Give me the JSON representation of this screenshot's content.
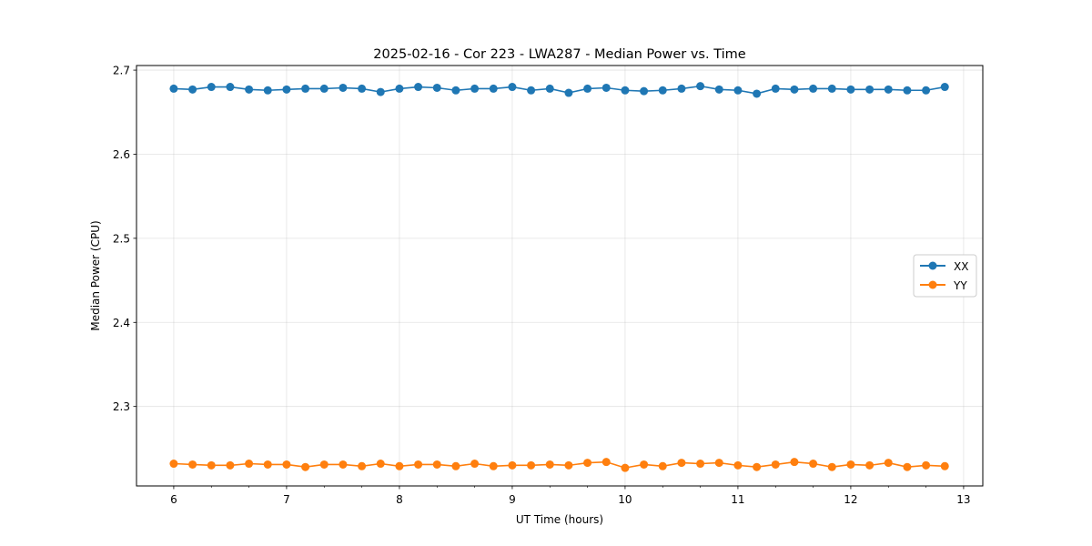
{
  "chart_data": {
    "type": "line",
    "title": "2025-02-16 - Cor 223 - LWA287 - Median Power vs. Time",
    "xlabel": "UT Time (hours)",
    "ylabel": "Median Power (CPU)",
    "xlim": [
      5.67,
      13.17
    ],
    "ylim": [
      2.2055,
      2.7055
    ],
    "xticks": [
      6,
      7,
      8,
      9,
      10,
      11,
      12,
      13
    ],
    "yticks": [
      2.3,
      2.4,
      2.5,
      2.6,
      2.7
    ],
    "xtick_labels": [
      "6",
      "7",
      "8",
      "9",
      "10",
      "11",
      "12",
      "13"
    ],
    "ytick_labels": [
      "2.3",
      "2.4",
      "2.5",
      "2.6",
      "2.7"
    ],
    "grid": true,
    "legend_position": "right",
    "x": [
      6.0,
      6.1667,
      6.3333,
      6.5,
      6.6667,
      6.8333,
      7.0,
      7.1667,
      7.3333,
      7.5,
      7.6667,
      7.8333,
      8.0,
      8.1667,
      8.3333,
      8.5,
      8.6667,
      8.8333,
      9.0,
      9.1667,
      9.3333,
      9.5,
      9.6667,
      9.8333,
      10.0,
      10.1667,
      10.3333,
      10.5,
      10.6667,
      10.8333,
      11.0,
      11.1667,
      11.3333,
      11.5,
      11.6667,
      11.8333,
      12.0,
      12.1667,
      12.3333,
      12.5,
      12.6667,
      12.8333
    ],
    "series": [
      {
        "name": "XX",
        "color": "#1f77b4",
        "values": [
          2.678,
          2.677,
          2.68,
          2.68,
          2.677,
          2.676,
          2.677,
          2.678,
          2.678,
          2.679,
          2.678,
          2.674,
          2.678,
          2.68,
          2.679,
          2.676,
          2.678,
          2.678,
          2.68,
          2.676,
          2.678,
          2.673,
          2.678,
          2.679,
          2.676,
          2.675,
          2.676,
          2.678,
          2.681,
          2.677,
          2.676,
          2.672,
          2.678,
          2.677,
          2.678,
          2.678,
          2.677,
          2.677,
          2.677,
          2.676,
          2.676,
          2.68
        ]
      },
      {
        "name": "YY",
        "color": "#ff7f0e",
        "values": [
          2.232,
          2.231,
          2.23,
          2.23,
          2.232,
          2.231,
          2.231,
          2.228,
          2.231,
          2.231,
          2.229,
          2.232,
          2.229,
          2.231,
          2.231,
          2.229,
          2.232,
          2.229,
          2.23,
          2.23,
          2.231,
          2.23,
          2.233,
          2.234,
          2.227,
          2.231,
          2.229,
          2.233,
          2.232,
          2.233,
          2.23,
          2.228,
          2.231,
          2.234,
          2.232,
          2.228,
          2.231,
          2.23,
          2.233,
          2.228,
          2.23,
          2.229
        ]
      }
    ]
  }
}
